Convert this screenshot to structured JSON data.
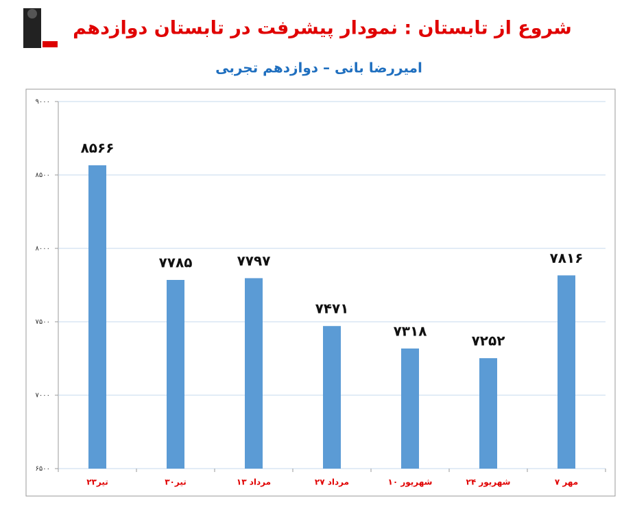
{
  "chart_data": {
    "type": "bar",
    "title": "شروع از تابستان : نمودار پیشرفت در تابستان دوازدهم",
    "subtitle": "امیررضا بانی – دوازدهم تجربی",
    "categories": [
      "۲۳تیر",
      "۳۰تیر",
      "۱۳ مرداد",
      "۲۷ مرداد",
      "۱۰ شهریور",
      "۲۴ شهریور",
      "۷ مهر"
    ],
    "values": [
      8566,
      7785,
      7797,
      7471,
      7318,
      7252,
      7816
    ],
    "value_labels": [
      "۸۵۶۶",
      "۷۷۸۵",
      "۷۷۹۷",
      "۷۴۷۱",
      "۷۳۱۸",
      "۷۲۵۲",
      "۷۸۱۶"
    ],
    "color": "#5b9bd5",
    "ylim": [
      6500,
      9000
    ],
    "yticks": [
      {
        "value": 6500,
        "label": "۶۵۰۰"
      },
      {
        "value": 7000,
        "label": "۷۰۰۰"
      },
      {
        "value": 7500,
        "label": "۷۵۰۰"
      },
      {
        "value": 8000,
        "label": "۸۰۰۰"
      },
      {
        "value": 8500,
        "label": "۸۵۰۰"
      },
      {
        "value": 9000,
        "label": "۹۰۰۰"
      }
    ],
    "grid": true
  }
}
